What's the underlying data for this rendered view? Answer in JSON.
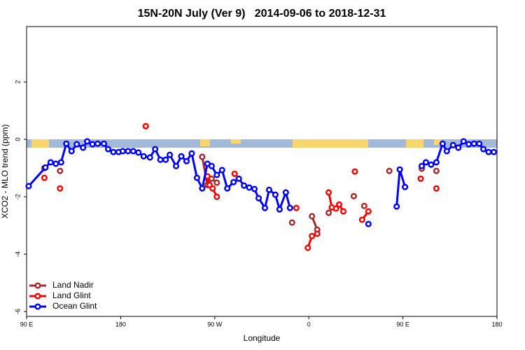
{
  "chart_data": {
    "type": "line",
    "title": "15N-20N July (Ver 9)   2014-09-06 to 2018-12-31",
    "x_label": "Longitude",
    "y_label": "XCO2 - MLO trend (ppm)",
    "xlim": [
      90,
      540
    ],
    "ylim": [
      -6.17,
      3.93
    ],
    "xticks": [
      {
        "value": 90,
        "label": "90 E"
      },
      180,
      {
        "value": 270,
        "label": "90 W"
      },
      {
        "value": 360,
        "label": "0"
      },
      {
        "value": 450,
        "label": "90 E"
      },
      180
    ],
    "yticks": [
      -6,
      -4,
      -2,
      0,
      2
    ],
    "legend": "bottom-left",
    "series": [
      {
        "name": "Land Nadir",
        "color": "#a52a2a",
        "x": [
          107,
          null,
          122,
          null,
          258,
          263,
          267,
          272,
          null,
          344,
          null,
          363,
          368,
          null,
          379,
          null,
          403,
          null,
          413,
          null,
          437,
          null,
          468,
          null,
          482
        ],
        "values": [
          -1.0,
          null,
          -1.1,
          null,
          -0.61,
          -1.59,
          -1.37,
          -1.51,
          null,
          -2.9,
          null,
          -2.68,
          -3.15,
          null,
          -2.56,
          null,
          -1.98,
          null,
          -2.32,
          null,
          -1.1,
          null,
          -1.02,
          null,
          -1.1
        ]
      },
      {
        "name": "Land Glint",
        "color": "#ff0000",
        "x": [
          107,
          null,
          122,
          null,
          204,
          null,
          263,
          265,
          268,
          272,
          null,
          289,
          null,
          348,
          null,
          359,
          363,
          368,
          null,
          379,
          382,
          386,
          389,
          393,
          null,
          404,
          null,
          411,
          417,
          null,
          467,
          null,
          482
        ],
        "values": [
          -1.34,
          null,
          -1.71,
          null,
          0.46,
          null,
          -1.29,
          -1.59,
          -1.71,
          -2.0,
          null,
          -1.2,
          null,
          -2.39,
          null,
          -3.78,
          -3.37,
          -3.29,
          null,
          -1.85,
          -2.37,
          -2.41,
          -2.27,
          -2.51,
          null,
          -1.12,
          null,
          -2.8,
          -2.51,
          null,
          -1.37,
          null,
          -1.71
        ]
      },
      {
        "name": "Ocean Glint",
        "color": "#0000ff",
        "x": [
          92,
          108,
          113,
          118,
          123,
          128,
          133,
          138,
          144,
          148,
          153,
          158,
          164,
          168,
          173,
          178,
          182,
          187,
          192,
          197,
          202,
          208,
          213,
          218,
          223,
          227,
          233,
          238,
          243,
          248,
          253,
          258,
          263,
          267,
          272,
          277,
          282,
          288,
          293,
          298,
          303,
          308,
          312,
          318,
          322,
          328,
          332,
          338,
          342,
          null,
          417,
          null,
          444,
          447,
          452,
          null,
          468,
          472,
          477,
          482,
          488,
          492,
          498,
          503,
          508,
          513,
          518,
          523,
          527,
          532,
          537
        ],
        "values": [
          -1.63,
          -0.98,
          -0.8,
          -0.85,
          -0.8,
          -0.15,
          -0.41,
          -0.17,
          -0.29,
          -0.07,
          -0.17,
          -0.15,
          -0.15,
          -0.34,
          -0.44,
          -0.44,
          -0.41,
          -0.41,
          -0.41,
          -0.46,
          -0.59,
          -0.63,
          -0.34,
          -0.71,
          -0.71,
          -0.54,
          -0.93,
          -0.59,
          -0.76,
          -0.49,
          -1.34,
          -1.71,
          -0.85,
          -0.93,
          -1.24,
          -1.07,
          -1.71,
          -1.49,
          -1.37,
          -1.61,
          -1.68,
          -1.73,
          -2.05,
          -2.39,
          -1.76,
          -1.93,
          -2.44,
          -1.85,
          -2.39,
          null,
          -2.95,
          null,
          -2.34,
          -1.05,
          -1.66,
          null,
          -0.93,
          -0.8,
          -0.88,
          -0.8,
          -0.15,
          -0.41,
          -0.2,
          -0.29,
          -0.07,
          -0.17,
          -0.15,
          -0.15,
          -0.34,
          -0.44,
          -0.44
        ]
      }
    ]
  }
}
